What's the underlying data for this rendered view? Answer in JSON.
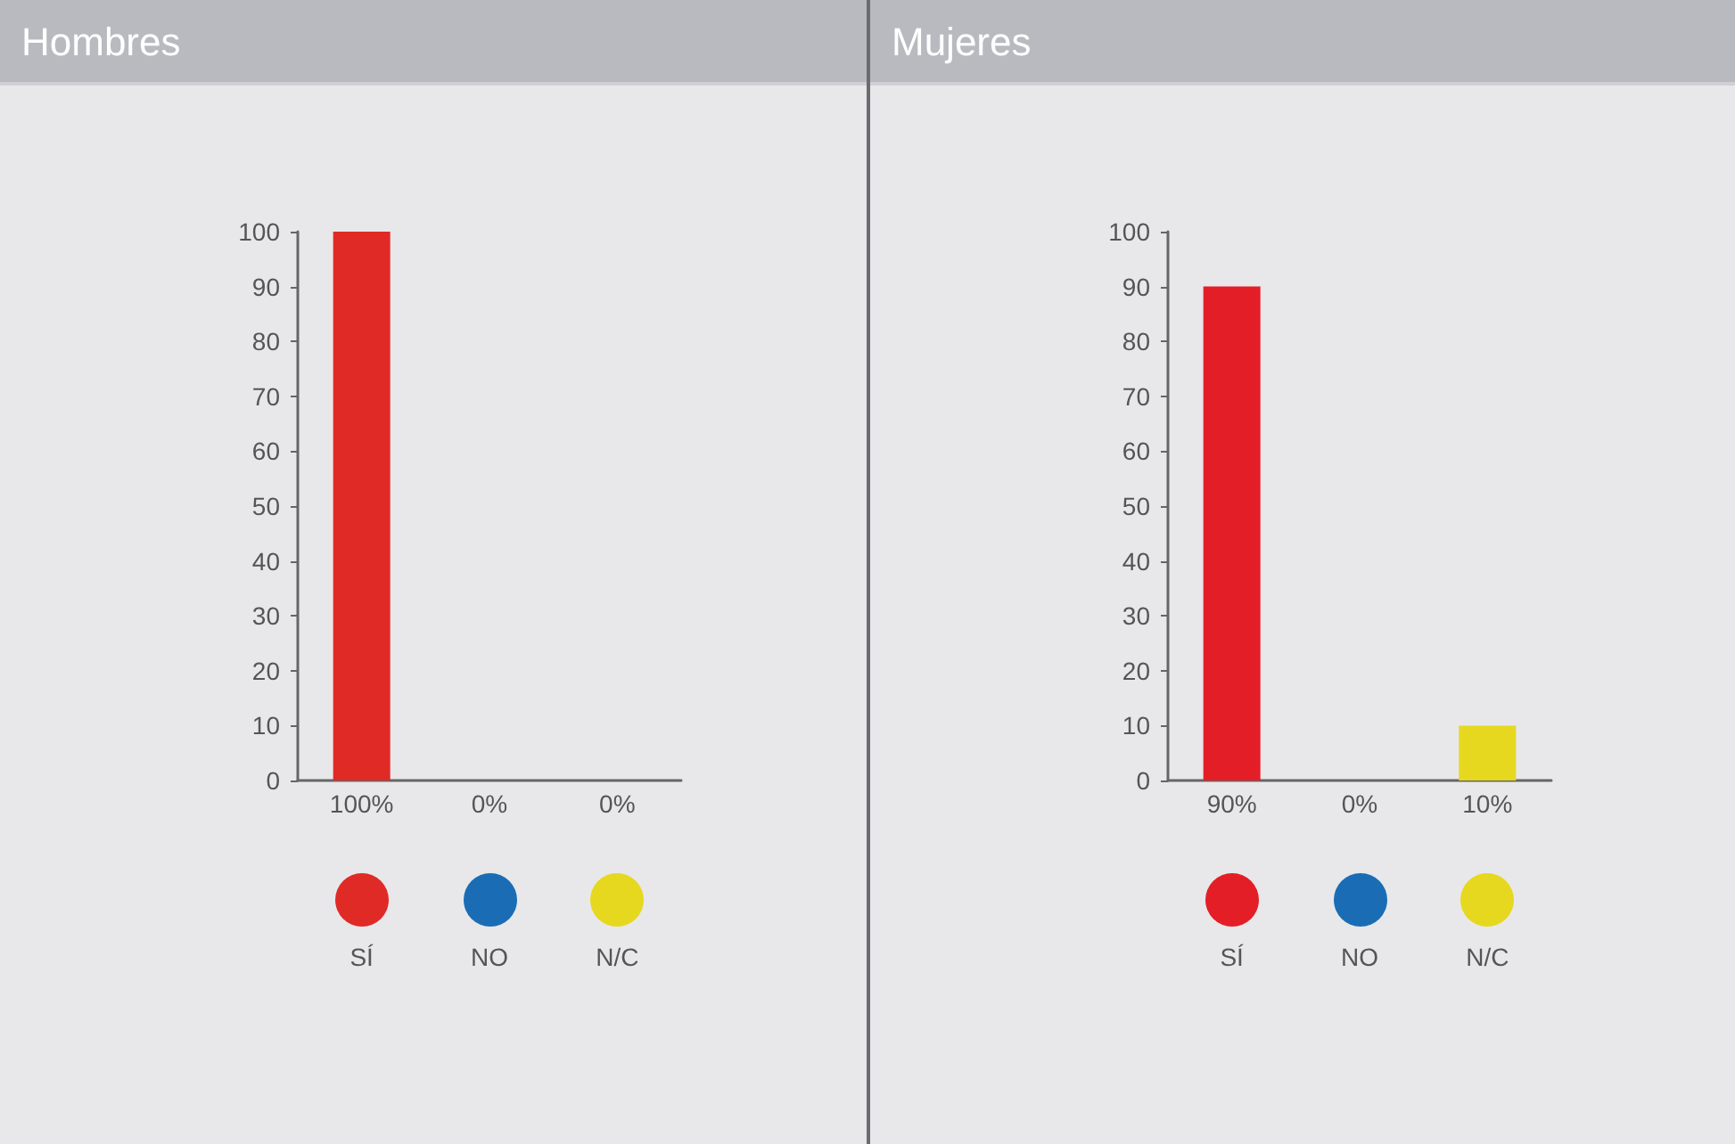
{
  "chart_data": [
    {
      "type": "bar",
      "title": "Hombres",
      "categories": [
        "SÍ",
        "NO",
        "N/C"
      ],
      "ylim": [
        0,
        100
      ],
      "yticks": [
        0,
        10,
        20,
        30,
        40,
        50,
        60,
        70,
        80,
        90,
        100
      ],
      "grid": false,
      "values": [
        100,
        0,
        0
      ],
      "colors": [
        "#e02a26",
        "#1a6db5",
        "#e6d81f"
      ],
      "value_labels": [
        "100%",
        "0%",
        "0%"
      ]
    },
    {
      "type": "bar",
      "title": "Mujeres",
      "categories": [
        "SÍ",
        "NO",
        "N/C"
      ],
      "ylim": [
        0,
        100
      ],
      "yticks": [
        0,
        10,
        20,
        30,
        40,
        50,
        60,
        70,
        80,
        90,
        100
      ],
      "grid": false,
      "values": [
        90,
        0,
        10
      ],
      "colors": [
        "#e41e26",
        "#1a6db5",
        "#e6d81f"
      ],
      "value_labels": [
        "90%",
        "0%",
        "10%"
      ]
    }
  ]
}
